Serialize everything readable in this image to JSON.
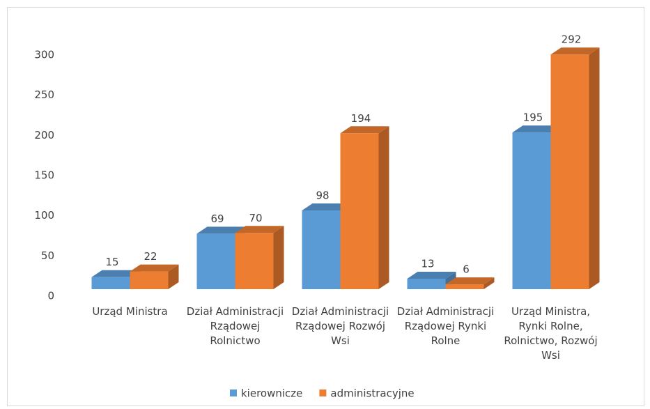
{
  "chart_data": {
    "type": "bar3d",
    "categories": [
      "Urząd Ministra",
      "Dział Administracji Rządowej Rolnictwo",
      "Dział Administracji Rządowej Rozwój Wsi",
      "Dział Administracji Rządowej Rynki Rolne",
      "Urząd Ministra, Rynki Rolne, Rolnictwo, Rozwój Wsi"
    ],
    "series": [
      {
        "name": "kierownicze",
        "color": "#5b9bd5",
        "values": [
          15,
          69,
          98,
          13,
          195
        ]
      },
      {
        "name": "administracyjne",
        "color": "#ed7d31",
        "values": [
          22,
          70,
          194,
          6,
          292
        ]
      }
    ],
    "ylim": [
      0,
      300
    ],
    "yticks": [
      0,
      50,
      100,
      150,
      200,
      250,
      300
    ],
    "grid": false,
    "legend": "bottom"
  }
}
